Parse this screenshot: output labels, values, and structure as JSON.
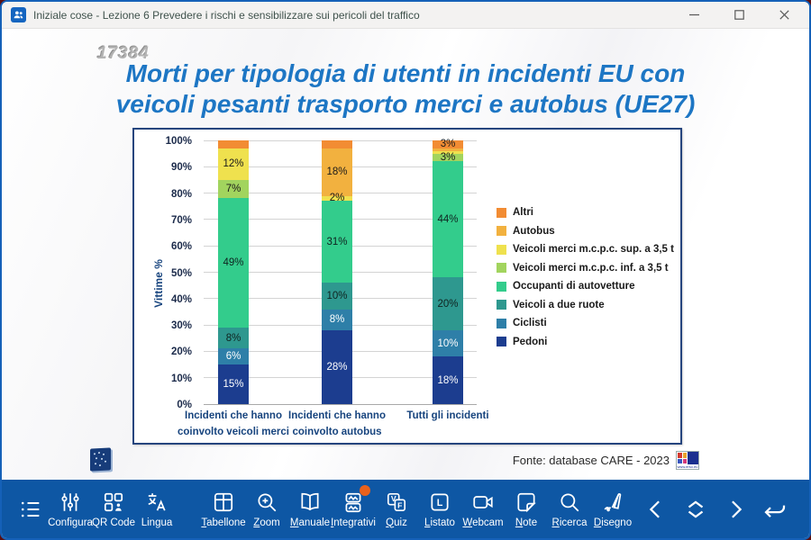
{
  "window": {
    "title": "Iniziale cose - Lezione 6 Prevedere i rischi e sensibilizzare sui pericoli del traffico"
  },
  "slide": {
    "number": "17384",
    "title_line1": "Morti per tipologia di utenti in incidenti EU con",
    "title_line2": "veicoli pesanti trasporto merci e autobus (UE27)",
    "source": "Fonte: database CARE - 2023",
    "erso_caption": "www.erso.eu"
  },
  "chart_data": {
    "type": "bar",
    "stacked": true,
    "ylabel": "Vittime %",
    "ylim": [
      0,
      100
    ],
    "grid": true,
    "legend_position": "right",
    "yticks": [
      "0%",
      "10%",
      "20%",
      "30%",
      "40%",
      "50%",
      "60%",
      "70%",
      "80%",
      "90%",
      "100%"
    ],
    "categories": [
      "Incidenti che hanno coinvolto veicoli merci",
      "Incidenti che hanno coinvolto autobus",
      "Tutti gli incidenti"
    ],
    "series": [
      {
        "name": "Pedoni",
        "color": "#1C3D8F",
        "label_text": "#ffffff",
        "values": [
          15,
          28,
          18
        ],
        "labels": [
          "15%",
          "28%",
          "18%"
        ]
      },
      {
        "name": "Ciclisti",
        "color": "#2E7FA8",
        "label_text": "#ffffff",
        "values": [
          6,
          8,
          10
        ],
        "labels": [
          "6%",
          "8%",
          "10%"
        ]
      },
      {
        "name": "Veicoli a due ruote",
        "color": "#2E988F",
        "label_text": "#0f2320",
        "values": [
          8,
          10,
          20
        ],
        "labels": [
          "8%",
          "10%",
          "20%"
        ]
      },
      {
        "name": "Occupanti di autovetture",
        "color": "#33CC8C",
        "label_text": "#0f2320",
        "values": [
          49,
          31,
          44
        ],
        "labels": [
          "49%",
          "31%",
          "44%"
        ]
      },
      {
        "name": "Veicoli merci m.c.p.c. inf. a 3,5 t",
        "color": "#A2D45E",
        "label_text": "#1a1a1a",
        "values": [
          7,
          0,
          3
        ],
        "labels": [
          "7%",
          "",
          "3%"
        ]
      },
      {
        "name": "Veicoli merci m.c.p.c. sup. a 3,5 t",
        "color": "#EFE14E",
        "label_text": "#1a1a1a",
        "values": [
          12,
          2,
          1
        ],
        "labels": [
          "12%",
          "2%",
          ""
        ]
      },
      {
        "name": "Autobus",
        "color": "#F2B13F",
        "label_text": "#1a1a1a",
        "values": [
          0,
          18,
          1
        ],
        "labels": [
          "",
          "18%",
          ""
        ]
      },
      {
        "name": "Altri",
        "color": "#F28C33",
        "label_text": "#1a1a1a",
        "values": [
          3,
          3,
          3
        ],
        "labels": [
          "",
          "",
          "3%"
        ]
      }
    ]
  },
  "toolbar": {
    "items": [
      {
        "label": "Configura"
      },
      {
        "label": "QR Code"
      },
      {
        "label": "Lingua"
      },
      {
        "label": "Tabellone"
      },
      {
        "label": "Zoom"
      },
      {
        "label": "Manuale"
      },
      {
        "label": "Integrativi"
      },
      {
        "label": "Quiz"
      },
      {
        "label": "Listato"
      },
      {
        "label": "Webcam"
      },
      {
        "label": "Note"
      },
      {
        "label": "Ricerca"
      },
      {
        "label": "Disegno"
      }
    ],
    "quiz_v": "V",
    "quiz_f": "F",
    "listato_letter": "L"
  },
  "colors": {
    "toolbar_bg": "#0E57A4",
    "title_blue": "#1D76C4",
    "window_border": "#1561B8",
    "badge_orange": "#E8611C"
  }
}
